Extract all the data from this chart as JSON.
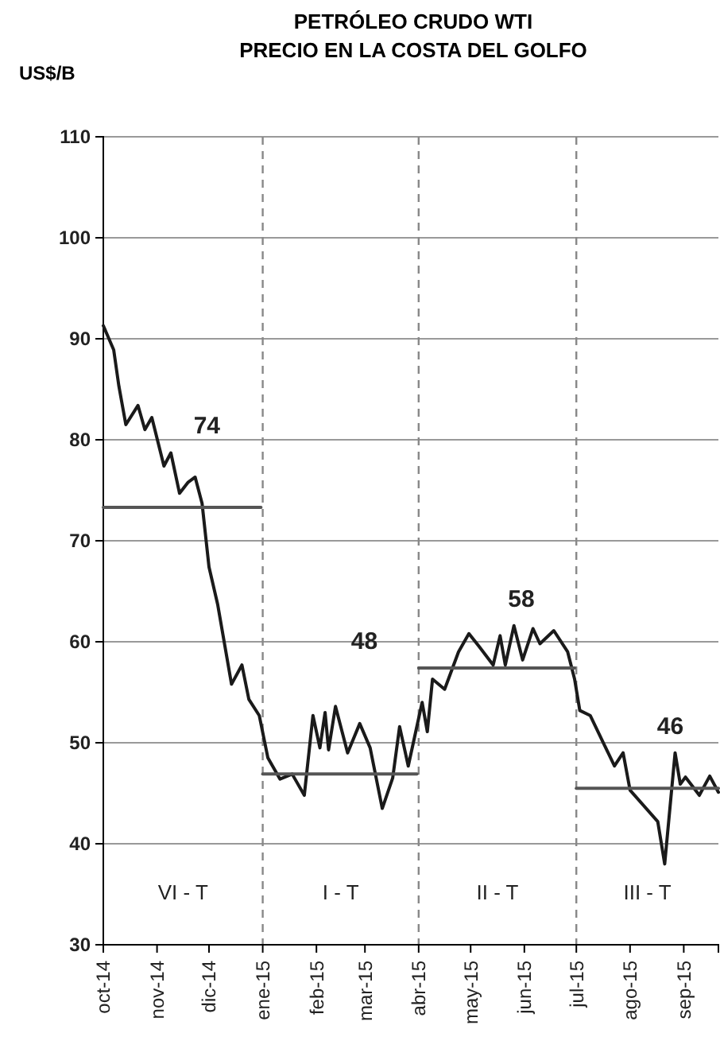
{
  "chart_data": {
    "type": "line",
    "title": "PETRÓLEO CRUDO WTI",
    "subtitle": "PRECIO EN LA COSTA DEL GOLFO",
    "ylabel": "US$/B",
    "xlim": [
      "2014-10-01",
      "2015-09-21"
    ],
    "ylim": [
      30,
      110
    ],
    "yticks": [
      30,
      40,
      50,
      60,
      70,
      80,
      90,
      100,
      110
    ],
    "xticks": [
      {
        "value": "2014-10-01",
        "label": "oct-14"
      },
      {
        "value": "2014-11-01",
        "label": "nov-14"
      },
      {
        "value": "2014-12-01",
        "label": "dic-14"
      },
      {
        "value": "2015-01-01",
        "label": "ene-15"
      },
      {
        "value": "2015-02-01",
        "label": "feb-15"
      },
      {
        "value": "2015-03-01",
        "label": "mar-15"
      },
      {
        "value": "2015-04-01",
        "label": "abr-15"
      },
      {
        "value": "2015-05-01",
        "label": "may-15"
      },
      {
        "value": "2015-06-01",
        "label": "jun-15"
      },
      {
        "value": "2015-07-01",
        "label": "jul-15"
      },
      {
        "value": "2015-08-01",
        "label": "ago-15"
      },
      {
        "value": "2015-09-01",
        "label": "sep-15"
      }
    ],
    "grid": "y",
    "marker": "none",
    "line_style": "solid",
    "series": [
      {
        "color": "#1a1a1a",
        "x": [
          "2014-10-01",
          "2014-10-07",
          "2014-10-10",
          "2014-10-14",
          "2014-10-21",
          "2014-10-25",
          "2014-10-29",
          "2014-11-05",
          "2014-11-09",
          "2014-11-14",
          "2014-11-19",
          "2014-11-23",
          "2014-11-27",
          "2014-12-01",
          "2014-12-06",
          "2014-12-14",
          "2014-12-20",
          "2014-12-24",
          "2014-12-30",
          "2015-01-04",
          "2015-01-11",
          "2015-01-18",
          "2015-01-25",
          "2015-01-30",
          "2015-02-03",
          "2015-02-06",
          "2015-02-08",
          "2015-02-12",
          "2015-02-19",
          "2015-02-26",
          "2015-03-04",
          "2015-03-11",
          "2015-03-17",
          "2015-03-21",
          "2015-03-26",
          "2015-04-03",
          "2015-04-06",
          "2015-04-09",
          "2015-04-16",
          "2015-04-24",
          "2015-04-30",
          "2015-05-06",
          "2015-05-14",
          "2015-05-18",
          "2015-05-21",
          "2015-05-26",
          "2015-05-31",
          "2015-06-06",
          "2015-06-10",
          "2015-06-18",
          "2015-06-26",
          "2015-06-30",
          "2015-07-03",
          "2015-07-09",
          "2015-07-23",
          "2015-07-28",
          "2015-08-01",
          "2015-08-17",
          "2015-08-21",
          "2015-08-27",
          "2015-08-30",
          "2015-09-02",
          "2015-09-10",
          "2015-09-16",
          "2015-09-21"
        ],
        "values": [
          91.3,
          88.9,
          85.3,
          81.5,
          83.4,
          81,
          82.2,
          77.4,
          78.7,
          74.7,
          75.8,
          76.3,
          73.7,
          67.4,
          63.7,
          55.8,
          57.7,
          54.3,
          52.7,
          48.5,
          46.4,
          46.9,
          44.8,
          52.7,
          49.5,
          53,
          49.3,
          53.6,
          49,
          51.9,
          49.5,
          43.5,
          46.5,
          51.6,
          47.7,
          54,
          51.1,
          56.3,
          55.3,
          59,
          60.8,
          59.5,
          57.7,
          60.6,
          57.7,
          61.6,
          58.2,
          61.3,
          59.8,
          61.1,
          59,
          56.3,
          53.2,
          52.7,
          47.7,
          49,
          45.3,
          42.2,
          38,
          49,
          45.9,
          46.6,
          44.8,
          46.7,
          45.1
        ]
      },
      {
        "color": "#555555",
        "x": [
          "2014-10-01",
          "2014-12-31"
        ],
        "values": [
          73.3,
          73.3
        ]
      },
      {
        "color": "#555555",
        "x": [
          "2015-01-01",
          "2015-03-31"
        ],
        "values": [
          46.9,
          46.9
        ]
      },
      {
        "color": "#555555",
        "x": [
          "2015-04-01",
          "2015-06-30"
        ],
        "values": [
          57.4,
          57.4
        ]
      },
      {
        "color": "#555555",
        "x": [
          "2015-07-01",
          "2015-09-21"
        ],
        "values": [
          45.5,
          45.5
        ]
      }
    ],
    "ref_lines": [
      {
        "axis": "x",
        "value": "2015-01-01",
        "line_style": "dashed",
        "color": "#888888"
      },
      {
        "axis": "x",
        "value": "2015-04-01",
        "line_style": "dashed",
        "color": "#888888"
      },
      {
        "axis": "x",
        "value": "2015-07-01",
        "line_style": "dashed",
        "color": "#888888"
      }
    ],
    "annotations": [
      "74",
      "48",
      "58",
      "46",
      "VI - T",
      "I - T",
      "II - T",
      "III - T"
    ]
  }
}
